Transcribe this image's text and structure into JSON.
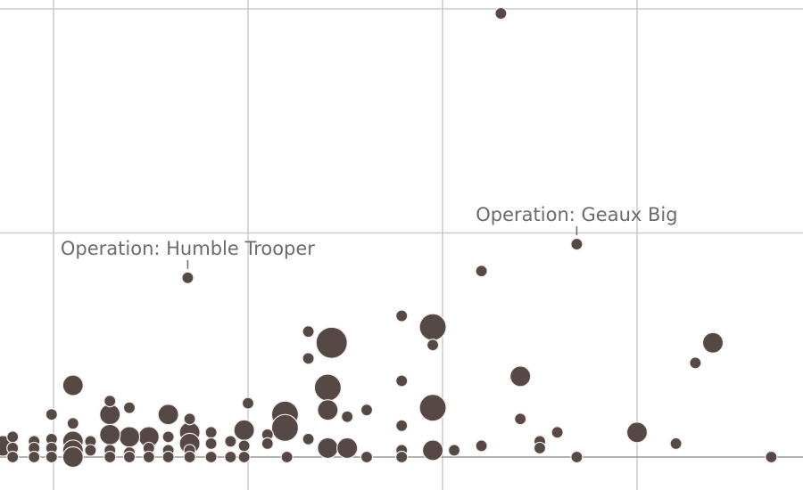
{
  "chart_data": {
    "type": "scatter",
    "title": "",
    "xlabel": "",
    "ylabel": "",
    "xlim": [
      -0.27,
      3.85
    ],
    "ylim": [
      0,
      10
    ],
    "grid": true,
    "x_gridlines": [
      0,
      1,
      2,
      3
    ],
    "y_gridlines": [
      0,
      5,
      10
    ],
    "legend": "none",
    "color": "#554845",
    "annotations": [
      {
        "text": "Operation: Humble Trooper",
        "x": 0.69,
        "y": 4.0
      },
      {
        "text": "Operation: Geaux Big",
        "x": 2.69,
        "y": 4.75
      }
    ],
    "points": [
      {
        "x": 2.3,
        "y": 9.9,
        "size": 1
      },
      {
        "x": 0.69,
        "y": 4.0,
        "size": 1
      },
      {
        "x": 2.69,
        "y": 4.75,
        "size": 1
      },
      {
        "x": 2.2,
        "y": 4.15,
        "size": 1
      },
      {
        "x": 1.43,
        "y": 2.55,
        "size": 4
      },
      {
        "x": 1.95,
        "y": 2.9,
        "size": 3
      },
      {
        "x": 1.79,
        "y": 3.15,
        "size": 1
      },
      {
        "x": 1.31,
        "y": 2.8,
        "size": 1
      },
      {
        "x": 1.31,
        "y": 2.2,
        "size": 1
      },
      {
        "x": 1.95,
        "y": 2.5,
        "size": 1
      },
      {
        "x": 1.41,
        "y": 1.55,
        "size": 3
      },
      {
        "x": 1.79,
        "y": 1.7,
        "size": 1
      },
      {
        "x": 1.41,
        "y": 1.05,
        "size": 2
      },
      {
        "x": 1.51,
        "y": 0.9,
        "size": 1
      },
      {
        "x": 1.61,
        "y": 1.05,
        "size": 1
      },
      {
        "x": 1.79,
        "y": 0.7,
        "size": 1
      },
      {
        "x": 1.95,
        "y": 1.1,
        "size": 3
      },
      {
        "x": 1.19,
        "y": 0.95,
        "size": 3
      },
      {
        "x": 1.19,
        "y": 0.65,
        "size": 3
      },
      {
        "x": 1.31,
        "y": 0.4,
        "size": 1
      },
      {
        "x": 1.41,
        "y": 0.2,
        "size": 2
      },
      {
        "x": 1.51,
        "y": 0.2,
        "size": 2
      },
      {
        "x": 1.61,
        "y": 0.0,
        "size": 1
      },
      {
        "x": 1.79,
        "y": 0.15,
        "size": 1
      },
      {
        "x": 1.79,
        "y": 0.0,
        "size": 1
      },
      {
        "x": 1.95,
        "y": 0.15,
        "size": 2
      },
      {
        "x": 2.06,
        "y": 0.15,
        "size": 1
      },
      {
        "x": 1.0,
        "y": 1.2,
        "size": 1
      },
      {
        "x": 0.98,
        "y": 0.6,
        "size": 2
      },
      {
        "x": 1.1,
        "y": 0.5,
        "size": 1
      },
      {
        "x": 1.1,
        "y": 0.3,
        "size": 1
      },
      {
        "x": 0.98,
        "y": 0.25,
        "size": 1
      },
      {
        "x": 0.98,
        "y": 0.0,
        "size": 1
      },
      {
        "x": 1.2,
        "y": 0.0,
        "size": 1
      },
      {
        "x": 0.91,
        "y": 0.0,
        "size": 1
      },
      {
        "x": 0.81,
        "y": 0.0,
        "size": 1
      },
      {
        "x": 0.1,
        "y": 1.6,
        "size": 2
      },
      {
        "x": -0.01,
        "y": 0.95,
        "size": 1
      },
      {
        "x": 0.1,
        "y": 0.75,
        "size": 1
      },
      {
        "x": 0.29,
        "y": 1.25,
        "size": 1
      },
      {
        "x": 0.29,
        "y": 0.95,
        "size": 2
      },
      {
        "x": 0.59,
        "y": 0.95,
        "size": 2
      },
      {
        "x": 0.7,
        "y": 0.85,
        "size": 1
      },
      {
        "x": 0.39,
        "y": 1.1,
        "size": 1
      },
      {
        "x": 0.7,
        "y": 0.55,
        "size": 2
      },
      {
        "x": 0.7,
        "y": 0.3,
        "size": 2
      },
      {
        "x": 0.59,
        "y": 0.45,
        "size": 1
      },
      {
        "x": 0.49,
        "y": 0.45,
        "size": 2
      },
      {
        "x": 0.39,
        "y": 0.45,
        "size": 2
      },
      {
        "x": 0.29,
        "y": 0.5,
        "size": 2
      },
      {
        "x": 0.19,
        "y": 0.35,
        "size": 1
      },
      {
        "x": 0.1,
        "y": 0.35,
        "size": 2
      },
      {
        "x": -0.01,
        "y": 0.4,
        "size": 1
      },
      {
        "x": -0.1,
        "y": 0.35,
        "size": 1
      },
      {
        "x": -0.21,
        "y": 0.45,
        "size": 1
      },
      {
        "x": -0.26,
        "y": 0.25,
        "size": 2
      },
      {
        "x": -0.21,
        "y": 0.2,
        "size": 1
      },
      {
        "x": -0.1,
        "y": 0.2,
        "size": 1
      },
      {
        "x": -0.01,
        "y": 0.2,
        "size": 1
      },
      {
        "x": 0.1,
        "y": 0.15,
        "size": 2
      },
      {
        "x": 0.19,
        "y": 0.15,
        "size": 1
      },
      {
        "x": 0.29,
        "y": 0.15,
        "size": 1
      },
      {
        "x": 0.39,
        "y": 0.1,
        "size": 1
      },
      {
        "x": 0.49,
        "y": 0.2,
        "size": 1
      },
      {
        "x": 0.59,
        "y": 0.15,
        "size": 1
      },
      {
        "x": 0.7,
        "y": 0.15,
        "size": 1
      },
      {
        "x": -0.21,
        "y": 0.0,
        "size": 1
      },
      {
        "x": -0.1,
        "y": 0.0,
        "size": 1
      },
      {
        "x": -0.01,
        "y": 0.0,
        "size": 1
      },
      {
        "x": 0.1,
        "y": 0.0,
        "size": 2
      },
      {
        "x": 0.29,
        "y": 0.0,
        "size": 1
      },
      {
        "x": 0.39,
        "y": 0.0,
        "size": 1
      },
      {
        "x": 0.49,
        "y": 0.0,
        "size": 1
      },
      {
        "x": 0.59,
        "y": 0.0,
        "size": 1
      },
      {
        "x": 0.7,
        "y": 0.0,
        "size": 1
      },
      {
        "x": 0.81,
        "y": 0.55,
        "size": 1
      },
      {
        "x": 0.81,
        "y": 0.3,
        "size": 1
      },
      {
        "x": 0.91,
        "y": 0.35,
        "size": 1
      },
      {
        "x": 2.4,
        "y": 1.8,
        "size": 2
      },
      {
        "x": 2.4,
        "y": 0.85,
        "size": 1
      },
      {
        "x": 2.5,
        "y": 0.35,
        "size": 1
      },
      {
        "x": 2.59,
        "y": 0.55,
        "size": 1
      },
      {
        "x": 2.5,
        "y": 0.2,
        "size": 1
      },
      {
        "x": 2.2,
        "y": 0.25,
        "size": 1
      },
      {
        "x": 2.69,
        "y": 0.0,
        "size": 1
      },
      {
        "x": 3.0,
        "y": 0.55,
        "size": 2
      },
      {
        "x": 3.2,
        "y": 0.3,
        "size": 1
      },
      {
        "x": 3.3,
        "y": 2.1,
        "size": 1
      },
      {
        "x": 3.39,
        "y": 2.55,
        "size": 2
      },
      {
        "x": 3.69,
        "y": 0.0,
        "size": 1
      }
    ]
  }
}
